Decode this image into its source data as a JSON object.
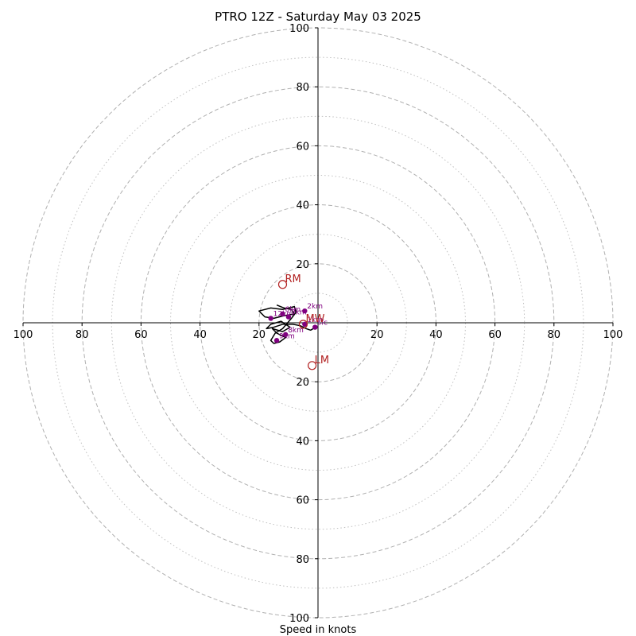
{
  "chart_data": {
    "type": "hodograph",
    "title": "PTRO 12Z - Saturday May 03 2025",
    "xlabel": "Speed in knots",
    "range": [
      -100,
      100
    ],
    "ring_major": [
      20,
      40,
      60,
      80,
      100
    ],
    "ring_minor": [
      10,
      30,
      50,
      70,
      90
    ],
    "tick_labels": [
      "100",
      "80",
      "60",
      "40",
      "20",
      "20",
      "40",
      "60",
      "80",
      "100"
    ],
    "tick_values": [
      -100,
      -80,
      -60,
      -40,
      -20,
      20,
      40,
      60,
      80,
      100
    ],
    "grid": true,
    "colors": {
      "trace": "#000000",
      "height_points": "#800080",
      "storm_motion": "#b22222",
      "grid": "#b0b0b0"
    },
    "trace": {
      "u": [
        -0.8,
        -2.5,
        -4.0,
        -6.0,
        -8.5,
        -12.0,
        -15.0,
        -17.5,
        -16.0,
        -12.5,
        -9.5,
        -12.0,
        -15.5,
        -14.0,
        -11.0,
        -13.0,
        -15.0,
        -16.0,
        -14.5,
        -12.0,
        -9.0,
        -7.5,
        -8.0,
        -12.0,
        -16.0,
        -20.0,
        -18.0,
        -15.0,
        -11.0,
        -8.0,
        -9.0,
        -11.5,
        -14.0
      ],
      "v": [
        -1.5,
        -2.5,
        -2.0,
        -1.0,
        -0.5,
        -0.5,
        -1.5,
        -2.0,
        -0.5,
        0.5,
        -1.5,
        -3.0,
        -2.0,
        -3.5,
        -5.0,
        -6.5,
        -7.0,
        -6.0,
        -3.5,
        -2.0,
        1.5,
        3.5,
        5.5,
        4.5,
        5.0,
        4.0,
        2.0,
        1.5,
        2.5,
        3.0,
        4.5,
        5.0,
        6.0
      ]
    },
    "height_points": [
      {
        "label": "sfc",
        "u": -1.0,
        "v": -1.5
      },
      {
        "label": "1km",
        "u": -4.5,
        "v": -0.5
      },
      {
        "label": "2km",
        "u": -4.5,
        "v": 4.0
      },
      {
        "label": "3km",
        "u": -10.0,
        "v": 2.0
      },
      {
        "label": "6km",
        "u": -12.0,
        "v": 3.0
      },
      {
        "label": "8km",
        "u": -11.0,
        "v": -4.0
      },
      {
        "label": "9km",
        "u": -14.0,
        "v": -6.0
      },
      {
        "label": "12km",
        "u": -16.0,
        "v": 1.5
      }
    ],
    "storm_motion": [
      {
        "label": "RM",
        "u": -12.0,
        "v": 13.0
      },
      {
        "label": "LM",
        "u": -2.0,
        "v": -14.5
      },
      {
        "label": "MW",
        "u": -5.0,
        "v": -0.5
      }
    ]
  }
}
